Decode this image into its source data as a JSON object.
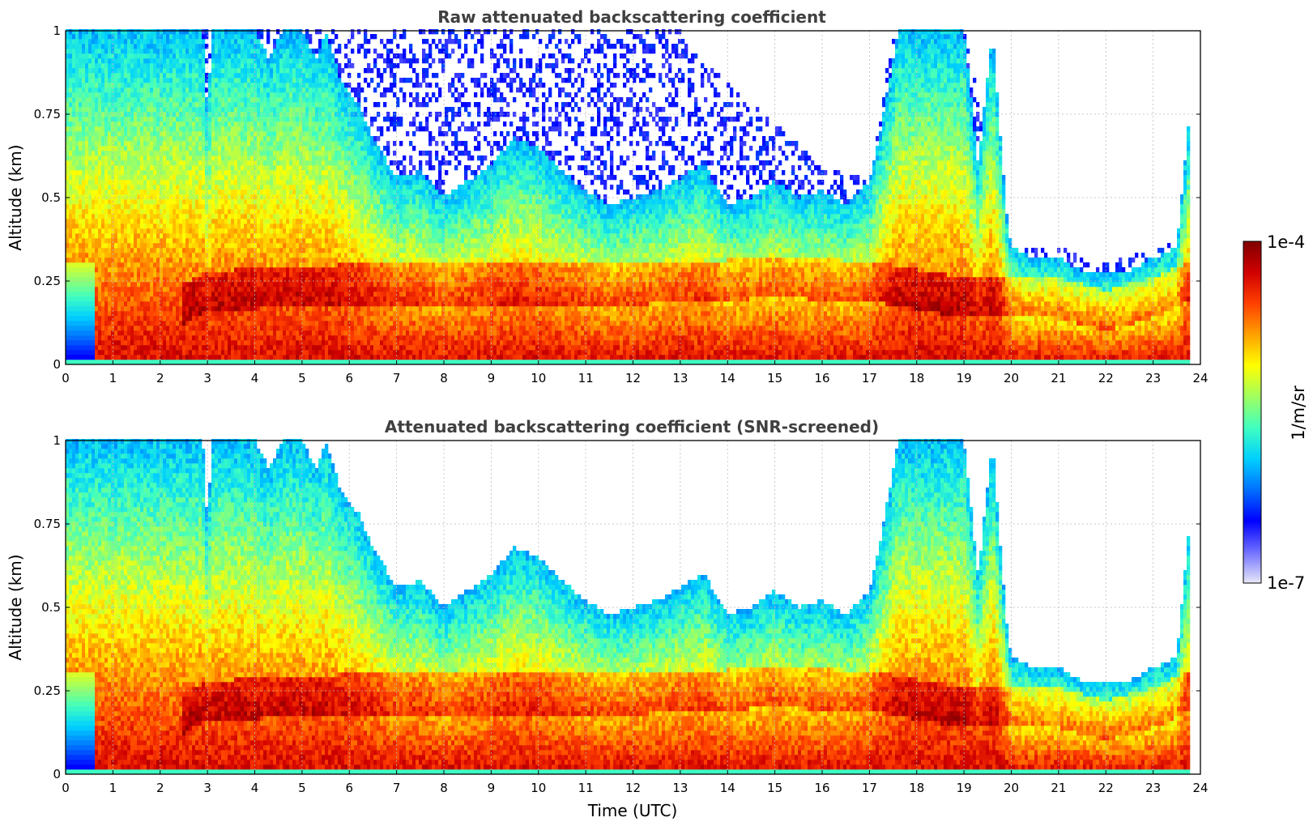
{
  "chart_data": [
    {
      "type": "heatmap",
      "title": "Raw attenuated backscattering coefficient",
      "xlabel": "",
      "ylabel": "Altitude (km)",
      "xlim": [
        0,
        24
      ],
      "ylim": [
        0,
        1
      ],
      "x_ticks": [
        "0",
        "1",
        "2",
        "3",
        "4",
        "5",
        "6",
        "7",
        "8",
        "9",
        "10",
        "11",
        "12",
        "13",
        "14",
        "15",
        "16",
        "17",
        "18",
        "19",
        "20",
        "21",
        "22",
        "23",
        "24"
      ],
      "y_ticks": [
        "0",
        "0.25",
        "0.5",
        "0.75",
        "1"
      ],
      "grid": true,
      "screened": false,
      "noise_top_km": [
        [
          0,
          1.0
        ],
        [
          1,
          1.0
        ],
        [
          2,
          1.0
        ],
        [
          3,
          1.0
        ],
        [
          4,
          1.0
        ],
        [
          5,
          1.0
        ],
        [
          6,
          1.0
        ],
        [
          7,
          1.0
        ],
        [
          8,
          1.0
        ],
        [
          9,
          1.0
        ],
        [
          10,
          1.0
        ],
        [
          11,
          1.0
        ],
        [
          12,
          1.0
        ],
        [
          13,
          1.0
        ],
        [
          14,
          0.85
        ],
        [
          15,
          0.72
        ],
        [
          16,
          0.6
        ],
        [
          17,
          0.55
        ],
        [
          17.5,
          1.0
        ],
        [
          18,
          1.0
        ],
        [
          19,
          1.0
        ],
        [
          20,
          0.35
        ],
        [
          21,
          0.35
        ],
        [
          22,
          0.3
        ],
        [
          23,
          0.35
        ],
        [
          24,
          0.4
        ]
      ]
    },
    {
      "type": "heatmap",
      "title": "Attenuated backscattering coefficient (SNR-screened)",
      "xlabel": "Time (UTC)",
      "ylabel": "Altitude (km)",
      "xlim": [
        0,
        24
      ],
      "ylim": [
        0,
        1
      ],
      "x_ticks": [
        "0",
        "1",
        "2",
        "3",
        "4",
        "5",
        "6",
        "7",
        "8",
        "9",
        "10",
        "11",
        "12",
        "13",
        "14",
        "15",
        "16",
        "17",
        "18",
        "19",
        "20",
        "21",
        "22",
        "23",
        "24"
      ],
      "y_ticks": [
        "0",
        "0.25",
        "0.5",
        "0.75",
        "1"
      ],
      "grid": true,
      "screened": true
    }
  ],
  "profile": {
    "signal_top_km": [
      [
        0,
        1.0
      ],
      [
        0.5,
        1.0
      ],
      [
        1,
        1.0
      ],
      [
        1.5,
        1.0
      ],
      [
        2,
        1.0
      ],
      [
        2.5,
        1.0
      ],
      [
        2.9,
        1.0
      ],
      [
        3.0,
        0.75
      ],
      [
        3.1,
        1.0
      ],
      [
        3.5,
        1.0
      ],
      [
        4.0,
        1.0
      ],
      [
        4.3,
        0.92
      ],
      [
        4.6,
        1.0
      ],
      [
        5.0,
        1.0
      ],
      [
        5.3,
        0.92
      ],
      [
        5.5,
        1.0
      ],
      [
        5.8,
        0.86
      ],
      [
        6.2,
        0.78
      ],
      [
        6.5,
        0.68
      ],
      [
        7.0,
        0.56
      ],
      [
        7.5,
        0.58
      ],
      [
        8.0,
        0.5
      ],
      [
        8.5,
        0.55
      ],
      [
        9.0,
        0.6
      ],
      [
        9.5,
        0.68
      ],
      [
        10.0,
        0.65
      ],
      [
        10.5,
        0.58
      ],
      [
        11.0,
        0.52
      ],
      [
        11.5,
        0.48
      ],
      [
        12.0,
        0.5
      ],
      [
        12.5,
        0.52
      ],
      [
        13.0,
        0.56
      ],
      [
        13.5,
        0.6
      ],
      [
        14.0,
        0.48
      ],
      [
        14.5,
        0.5
      ],
      [
        15.0,
        0.55
      ],
      [
        15.5,
        0.5
      ],
      [
        16.0,
        0.52
      ],
      [
        16.5,
        0.48
      ],
      [
        17.0,
        0.55
      ],
      [
        17.3,
        0.75
      ],
      [
        17.6,
        1.0
      ],
      [
        18.0,
        1.0
      ],
      [
        18.5,
        1.0
      ],
      [
        19.0,
        1.0
      ],
      [
        19.3,
        0.6
      ],
      [
        19.6,
        1.0
      ],
      [
        19.9,
        0.45
      ],
      [
        20.0,
        0.35
      ],
      [
        20.5,
        0.32
      ],
      [
        21.0,
        0.32
      ],
      [
        21.5,
        0.28
      ],
      [
        22.0,
        0.27
      ],
      [
        22.5,
        0.28
      ],
      [
        23.0,
        0.32
      ],
      [
        23.5,
        0.35
      ],
      [
        23.8,
        0.8
      ]
    ],
    "data_end_hour": 23.8,
    "strong_layer_km": [
      [
        0,
        0.0
      ],
      [
        3,
        0.22
      ],
      [
        6,
        0.24
      ],
      [
        9,
        0.24
      ],
      [
        12,
        0.24
      ],
      [
        15,
        0.26
      ],
      [
        17,
        0.25
      ],
      [
        19,
        0.2
      ],
      [
        20,
        0.2
      ],
      [
        21,
        0.2
      ],
      [
        22,
        0.16
      ],
      [
        23,
        0.2
      ],
      [
        23.8,
        0.25
      ]
    ]
  },
  "colorbar": {
    "label": "1/m/sr",
    "max_label": "1e-4",
    "min_label": "1e-7",
    "scale": "log",
    "colormap": "jet",
    "colors": [
      "#e8e8f8",
      "#7070ff",
      "#0000ff",
      "#0070ff",
      "#00d0ff",
      "#40ffc0",
      "#a0ff60",
      "#ffff00",
      "#ffa000",
      "#ff4000",
      "#d00000",
      "#800000"
    ]
  }
}
